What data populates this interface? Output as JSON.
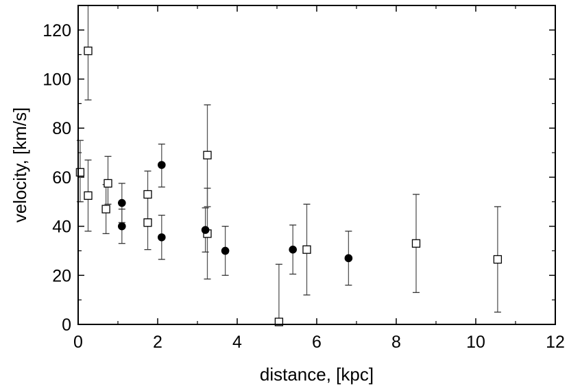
{
  "chart_data": {
    "type": "scatter",
    "xlabel": "distance, [kpc]",
    "ylabel": "velocity, [km/s]",
    "xlim": [
      0,
      12
    ],
    "ylim": [
      0,
      130
    ],
    "xticks": [
      0,
      2,
      4,
      6,
      8,
      10,
      12
    ],
    "yticks": [
      0,
      20,
      40,
      60,
      80,
      100,
      120
    ],
    "grid": false,
    "series": [
      {
        "marker": "open-square",
        "points": [
          {
            "x": 0.25,
            "y": 111.5,
            "err_low": 20,
            "err_high": 20
          },
          {
            "x": 0.05,
            "y": 62,
            "err_low": 12,
            "err_high": 13
          },
          {
            "x": 0.25,
            "y": 52.5,
            "err_low": 14.5,
            "err_high": 14.5
          },
          {
            "x": 0.75,
            "y": 57.5,
            "err_low": 8.5,
            "err_high": 11
          },
          {
            "x": 0.7,
            "y": 47,
            "err_low": 10,
            "err_high": 10
          },
          {
            "x": 1.75,
            "y": 53,
            "err_low": 10,
            "err_high": 9.5
          },
          {
            "x": 1.75,
            "y": 41.5,
            "err_low": 11,
            "err_high": 11
          },
          {
            "x": 3.25,
            "y": 69,
            "err_low": 21,
            "err_high": 20.5
          },
          {
            "x": 3.25,
            "y": 37,
            "err_low": 18.5,
            "err_high": 18.5
          },
          {
            "x": 5.05,
            "y": 1,
            "err_low": 1,
            "err_high": 23.5
          },
          {
            "x": 5.75,
            "y": 30.5,
            "err_low": 18.5,
            "err_high": 18.5
          },
          {
            "x": 8.5,
            "y": 33,
            "err_low": 20,
            "err_high": 20
          },
          {
            "x": 10.55,
            "y": 26.5,
            "err_low": 21.5,
            "err_high": 21.5
          }
        ]
      },
      {
        "marker": "filled-circle",
        "points": [
          {
            "x": 1.1,
            "y": 49.5,
            "err_low": 8,
            "err_high": 8
          },
          {
            "x": 1.1,
            "y": 40,
            "err_low": 7,
            "err_high": 7
          },
          {
            "x": 2.1,
            "y": 65,
            "err_low": 9,
            "err_high": 8.5
          },
          {
            "x": 2.1,
            "y": 35.5,
            "err_low": 9,
            "err_high": 9
          },
          {
            "x": 3.2,
            "y": 38.5,
            "err_low": 9,
            "err_high": 9
          },
          {
            "x": 3.7,
            "y": 30,
            "err_low": 10,
            "err_high": 10
          },
          {
            "x": 5.4,
            "y": 30.5,
            "err_low": 10,
            "err_high": 10
          },
          {
            "x": 6.8,
            "y": 27,
            "err_low": 11,
            "err_high": 11
          }
        ]
      }
    ]
  }
}
